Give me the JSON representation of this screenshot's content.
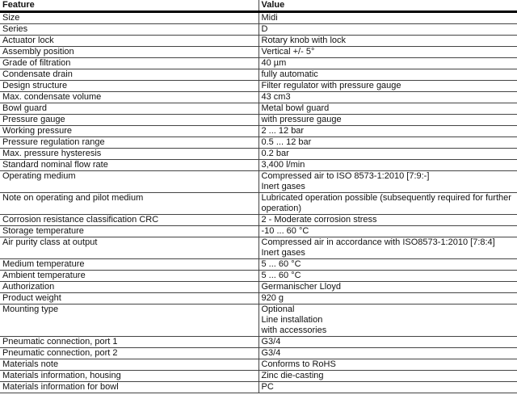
{
  "headers": {
    "feature": "Feature",
    "value": "Value"
  },
  "rows": [
    {
      "feature": "Size",
      "value": [
        "Midi"
      ]
    },
    {
      "feature": "Series",
      "value": [
        "D"
      ]
    },
    {
      "feature": "Actuator lock",
      "value": [
        "Rotary knob with lock"
      ]
    },
    {
      "feature": "Assembly position",
      "value": [
        "Vertical +/- 5°"
      ]
    },
    {
      "feature": "Grade of filtration",
      "value": [
        "40 µm"
      ]
    },
    {
      "feature": "Condensate drain",
      "value": [
        "fully automatic"
      ]
    },
    {
      "feature": "Design structure",
      "value": [
        "Filter regulator with pressure gauge"
      ]
    },
    {
      "feature": "Max. condensate volume",
      "value": [
        "43 cm3"
      ]
    },
    {
      "feature": "Bowl guard",
      "value": [
        "Metal bowl guard"
      ]
    },
    {
      "feature": "Pressure gauge",
      "value": [
        "with pressure gauge"
      ]
    },
    {
      "feature": "Working pressure",
      "value": [
        "2 ... 12 bar"
      ]
    },
    {
      "feature": "Pressure regulation range",
      "value": [
        "0.5 ... 12 bar"
      ]
    },
    {
      "feature": "Max. pressure hysteresis",
      "value": [
        "0.2 bar"
      ]
    },
    {
      "feature": "Standard nominal flow rate",
      "value": [
        "3,400 l/min"
      ]
    },
    {
      "feature": "Operating medium",
      "value": [
        "Compressed air to ISO 8573-1:2010 [7:9:-]",
        "Inert gases"
      ]
    },
    {
      "feature": "Note on operating and pilot medium",
      "value": [
        "Lubricated operation possible (subsequently required for further",
        "operation)"
      ]
    },
    {
      "feature": "Corrosion resistance classification CRC",
      "value": [
        "2 - Moderate corrosion stress"
      ]
    },
    {
      "feature": "Storage temperature",
      "value": [
        "-10 ... 60 °C"
      ]
    },
    {
      "feature": "Air purity class at output",
      "value": [
        "Compressed air in accordance with ISO8573-1:2010 [7:8:4]",
        "Inert gases"
      ]
    },
    {
      "feature": "Medium temperature",
      "value": [
        "5 ... 60 °C"
      ]
    },
    {
      "feature": "Ambient temperature",
      "value": [
        "5 ... 60 °C"
      ]
    },
    {
      "feature": "Authorization",
      "value": [
        "Germanischer Lloyd"
      ]
    },
    {
      "feature": "Product weight",
      "value": [
        "920 g"
      ]
    },
    {
      "feature": "Mounting type",
      "value": [
        "Optional",
        "Line installation",
        "with accessories"
      ]
    },
    {
      "feature": "Pneumatic connection, port  1",
      "value": [
        "G3/4"
      ]
    },
    {
      "feature": "Pneumatic connection, port  2",
      "value": [
        "G3/4"
      ]
    },
    {
      "feature": "Materials note",
      "value": [
        "Conforms to RoHS"
      ]
    },
    {
      "feature": "Materials information, housing",
      "value": [
        "Zinc die-casting"
      ]
    },
    {
      "feature": "Materials information for bowl",
      "value": [
        "PC"
      ]
    }
  ]
}
